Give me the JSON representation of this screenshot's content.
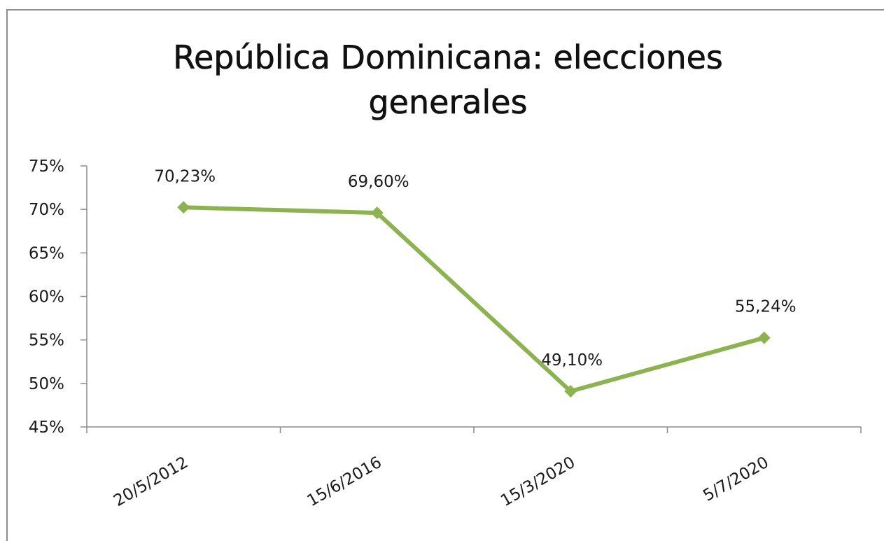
{
  "chart_data": {
    "type": "line",
    "title": "República Dominicana: elecciones generales",
    "xlabel": "",
    "ylabel": "",
    "categories": [
      "20/5/2012",
      "15/6/2016",
      "15/3/2020",
      "5/7/2020"
    ],
    "series": [
      {
        "values": [
          70.23,
          69.6,
          49.1,
          55.24
        ],
        "labels": [
          "70,23%",
          "69,60%",
          "49,10%",
          "55,24%"
        ],
        "color": "#8db351",
        "marker": "diamond"
      }
    ],
    "ylim": [
      45,
      75
    ],
    "yticks": [
      45,
      50,
      55,
      60,
      65,
      70,
      75
    ],
    "ytick_labels": [
      "45%",
      "50%",
      "55%",
      "60%",
      "65%",
      "70%",
      "75%"
    ],
    "grid": false,
    "legend": "none"
  }
}
